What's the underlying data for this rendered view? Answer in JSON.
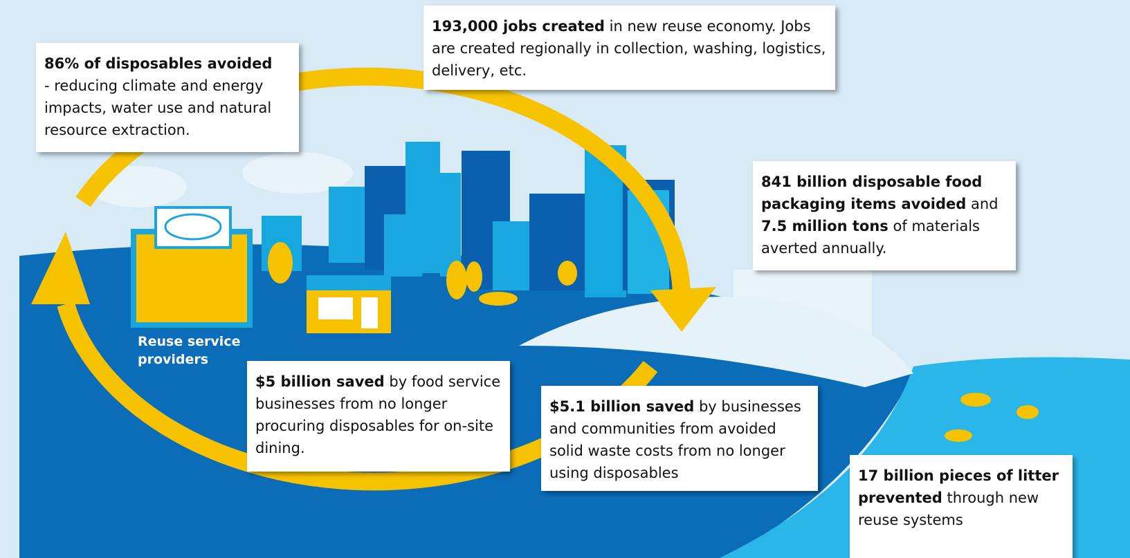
{
  "label": "Reuse service providers",
  "callouts": [
    {
      "parts": [
        {
          "strong": "86% of disposables avoided"
        },
        {
          "plain": "- reducing climate and energy impacts, water use and natural resource extraction."
        }
      ]
    },
    {
      "parts": [
        {
          "strong": "193,000 jobs created"
        },
        {
          "plain": " in new reuse economy. Jobs are created regionally in collection, washing, logistics, delivery, etc."
        }
      ]
    },
    {
      "parts": [
        {
          "strong": "841 billion disposable food packaging items avoided"
        },
        {
          "plain": " and "
        },
        {
          "strong": "7.5 million tons"
        },
        {
          "plain": " of materials averted annually."
        }
      ]
    },
    {
      "parts": [
        {
          "strong": "$5 billion saved"
        },
        {
          "plain": " by food service businesses from no longer procuring disposables for on-site dining."
        }
      ]
    },
    {
      "parts": [
        {
          "strong": "$5.1 billion saved"
        },
        {
          "plain": " by businesses and communities from avoided solid waste costs from no longer using disposables"
        }
      ]
    },
    {
      "parts": [
        {
          "strong": "17 billion pieces of litter prevented"
        },
        {
          "plain": " through new reuse systems"
        }
      ]
    }
  ]
}
